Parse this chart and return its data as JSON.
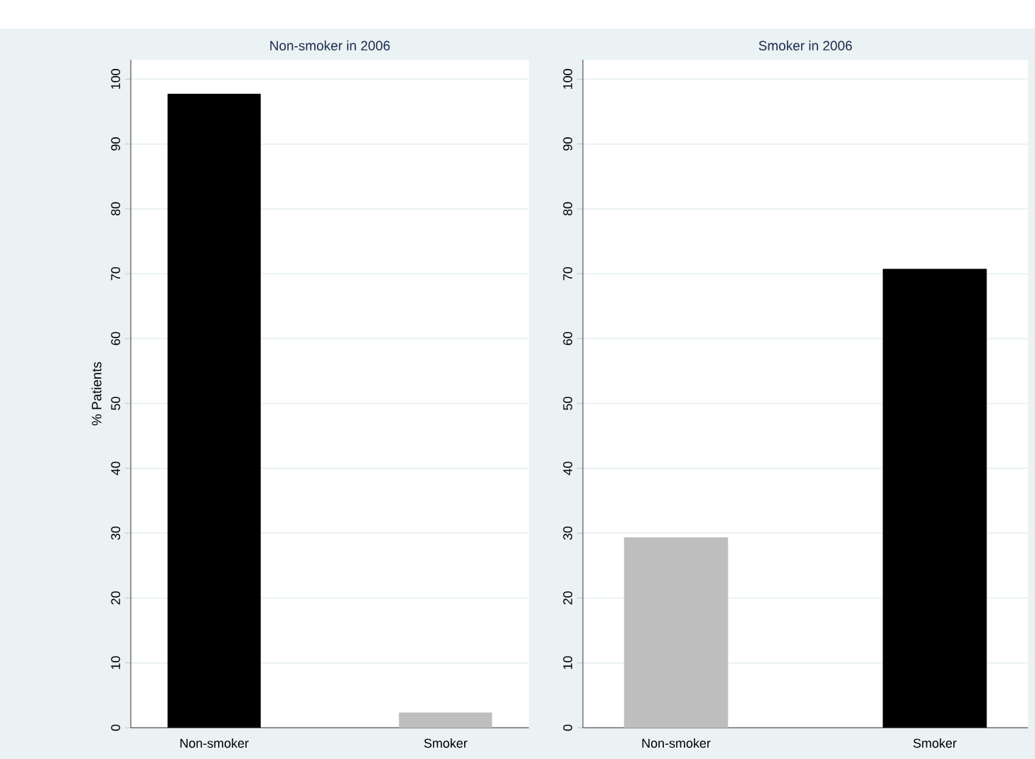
{
  "chart_data": [
    {
      "type": "bar",
      "title": "Non-smoker in 2006",
      "ylabel": "% Patients",
      "categories": [
        "Non-smoker",
        "Smoker"
      ],
      "values": [
        97.7,
        2.3
      ],
      "colors": [
        "#000000",
        "#bebebe"
      ],
      "ylim": [
        0,
        103
      ],
      "yticks": [
        0,
        10,
        20,
        30,
        40,
        50,
        60,
        70,
        80,
        90,
        100
      ],
      "grid": "y"
    },
    {
      "type": "bar",
      "title": "Smoker in 2006",
      "categories": [
        "Non-smoker",
        "Smoker"
      ],
      "values": [
        29.3,
        70.7
      ],
      "colors": [
        "#bebebe",
        "#000000"
      ],
      "ylim": [
        0,
        103
      ],
      "yticks": [
        0,
        10,
        20,
        30,
        40,
        50,
        60,
        70,
        80,
        90,
        100
      ],
      "grid": "y"
    }
  ]
}
